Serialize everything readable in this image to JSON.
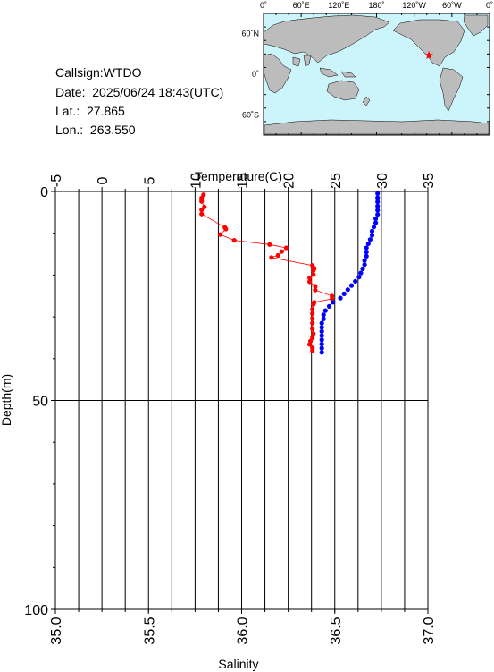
{
  "station": {
    "callsign": "Callsign:WTDO",
    "date": "Date:  2025/06/24 18:43(UTC)",
    "lat": "Lat.:  27.865",
    "lon": "Lon.:  263.550"
  },
  "map": {
    "top_labels": [
      "0˚",
      "60˚E",
      "120˚E",
      "180˚",
      "120˚W",
      "60˚W",
      "0˚"
    ],
    "left_labels": [
      "60˚N",
      "0˚",
      "60˚S"
    ],
    "ocean_color": "#ccf4fb",
    "land_color": "#bcbcbc",
    "marker_color": "#ff0000",
    "marker": {
      "lon": 263.55,
      "lat": 27.865
    }
  },
  "chart_data": {
    "type": "scatter",
    "title": "",
    "xlabel_top": "Temperature(C)",
    "xlabel_bottom": "Salinity",
    "ylabel": "Depth(m)",
    "temperature_axis": {
      "range": [
        -5,
        35
      ],
      "ticks": [
        "-5",
        "0",
        "5",
        "10",
        "15",
        "20",
        "25",
        "30",
        "35"
      ]
    },
    "salinity_axis": {
      "range": [
        35.0,
        37.0
      ],
      "ticks": [
        "35.0",
        "35.5",
        "36.0",
        "36.5",
        "37.0"
      ]
    },
    "depth_axis": {
      "range": [
        0,
        100
      ],
      "ticks": [
        "0",
        "50",
        "100"
      ],
      "inverted": true
    },
    "grid": true,
    "series": [
      {
        "color": "#ff0000",
        "axis": "temperature",
        "connected": true,
        "points": [
          [
            10.9,
            0.8
          ],
          [
            10.7,
            1.6
          ],
          [
            10.7,
            2.4
          ],
          [
            11.0,
            3.7
          ],
          [
            10.7,
            4.4
          ],
          [
            10.7,
            5.4
          ],
          [
            13.2,
            8.6
          ],
          [
            13.3,
            9.0
          ],
          [
            12.7,
            10.3
          ],
          [
            14.2,
            11.7
          ],
          [
            18.0,
            12.7
          ],
          [
            19.8,
            13.5
          ],
          [
            19.3,
            14.4
          ],
          [
            18.9,
            15.3
          ],
          [
            18.2,
            15.8
          ],
          [
            22.6,
            17.7
          ],
          [
            22.8,
            18.4
          ],
          [
            22.7,
            18.9
          ],
          [
            22.7,
            19.9
          ],
          [
            22.3,
            20.7
          ],
          [
            22.3,
            21.6
          ],
          [
            22.9,
            22.7
          ],
          [
            22.9,
            23.6
          ],
          [
            24.7,
            25.0
          ],
          [
            24.7,
            25.7
          ],
          [
            22.8,
            26.5
          ],
          [
            22.7,
            27.0
          ],
          [
            22.6,
            28.2
          ],
          [
            22.6,
            29.2
          ],
          [
            22.6,
            30.4
          ],
          [
            22.6,
            31.5
          ],
          [
            22.6,
            32.9
          ],
          [
            22.7,
            34.0
          ],
          [
            22.6,
            35.0
          ],
          [
            22.4,
            35.8
          ],
          [
            22.3,
            36.6
          ],
          [
            22.6,
            37.4
          ],
          [
            22.6,
            38.1
          ]
        ]
      },
      {
        "color": "#0000ff",
        "axis": "salinity",
        "connected": false,
        "points": [
          [
            36.73,
            0.5
          ],
          [
            36.73,
            1.5
          ],
          [
            36.73,
            2.5
          ],
          [
            36.73,
            3.5
          ],
          [
            36.73,
            4.5
          ],
          [
            36.73,
            5.5
          ],
          [
            36.72,
            6.5
          ],
          [
            36.72,
            7.5
          ],
          [
            36.71,
            8.5
          ],
          [
            36.7,
            9.5
          ],
          [
            36.7,
            10.5
          ],
          [
            36.69,
            11.5
          ],
          [
            36.68,
            12.5
          ],
          [
            36.67,
            13.5
          ],
          [
            36.67,
            14.5
          ],
          [
            36.67,
            15.5
          ],
          [
            36.66,
            16.5
          ],
          [
            36.66,
            17.5
          ],
          [
            36.65,
            18.5
          ],
          [
            36.64,
            19.5
          ],
          [
            36.63,
            20.5
          ],
          [
            36.61,
            21.5
          ],
          [
            36.59,
            22.5
          ],
          [
            36.57,
            23.5
          ],
          [
            36.55,
            24.5
          ],
          [
            36.53,
            25.5
          ],
          [
            36.49,
            26.5
          ],
          [
            36.47,
            27.5
          ],
          [
            36.45,
            28.5
          ],
          [
            36.44,
            29.5
          ],
          [
            36.44,
            30.5
          ],
          [
            36.43,
            31.5
          ],
          [
            36.43,
            32.5
          ],
          [
            36.43,
            33.5
          ],
          [
            36.43,
            34.5
          ],
          [
            36.43,
            35.5
          ],
          [
            36.43,
            36.5
          ],
          [
            36.43,
            37.5
          ],
          [
            36.43,
            38.5
          ]
        ]
      }
    ]
  }
}
